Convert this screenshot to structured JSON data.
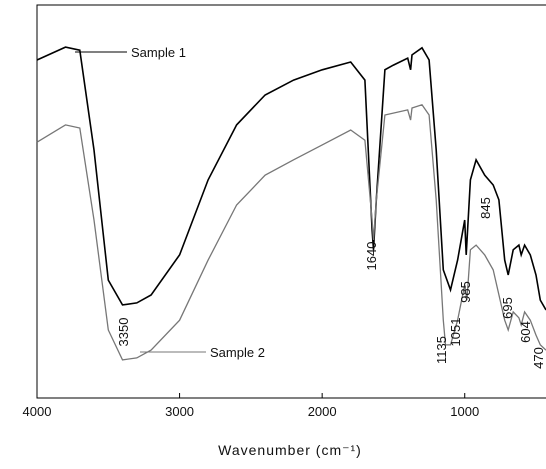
{
  "chart_data": {
    "type": "line",
    "x_label": "Wavenumber (cm⁻¹)",
    "xlim": [
      4000,
      430
    ],
    "ylim": [
      0,
      100
    ],
    "xticks": [
      4000,
      3000,
      2000,
      1000
    ],
    "series": [
      {
        "name": "Sample 1",
        "color": "#000000",
        "x": [
          4000,
          3800,
          3700,
          3600,
          3500,
          3400,
          3300,
          3200,
          3000,
          2800,
          2600,
          2400,
          2200,
          2000,
          1800,
          1700,
          1650,
          1640,
          1620,
          1560,
          1500,
          1400,
          1380,
          1370,
          1300,
          1250,
          1200,
          1150,
          1100,
          1050,
          1000,
          990,
          960,
          920,
          860,
          800,
          760,
          720,
          695,
          660,
          620,
          604,
          580,
          540,
          500,
          470,
          430
        ],
        "values": [
          86.0,
          89.3,
          88.5,
          63.1,
          30.0,
          23.7,
          24.2,
          26.2,
          36.4,
          55.5,
          69.5,
          77.1,
          80.9,
          83.5,
          85.5,
          80.9,
          42.7,
          37.7,
          50.4,
          83.5,
          84.7,
          86.5,
          83.5,
          87.3,
          89.1,
          86.0,
          63.1,
          32.6,
          27.5,
          35.1,
          45.3,
          36.4,
          55.5,
          60.6,
          56.7,
          54.2,
          50.4,
          35.1,
          31.3,
          37.7,
          38.9,
          36.4,
          38.9,
          36.4,
          31.3,
          24.9,
          22.4
        ]
      },
      {
        "name": "Sample 2",
        "color": "#777777",
        "x": [
          4000,
          3800,
          3700,
          3600,
          3500,
          3400,
          3300,
          3200,
          3000,
          2800,
          2600,
          2400,
          2200,
          2000,
          1800,
          1700,
          1650,
          1640,
          1620,
          1560,
          1400,
          1380,
          1370,
          1300,
          1250,
          1200,
          1150,
          1135,
          1100,
          1050,
          1000,
          985,
          960,
          920,
          860,
          800,
          720,
          695,
          660,
          620,
          604,
          580,
          540,
          500,
          470,
          430
        ],
        "values": [
          65.1,
          69.5,
          68.7,
          45.3,
          17.3,
          9.7,
          10.2,
          12.2,
          19.8,
          35.1,
          49.1,
          56.7,
          60.6,
          64.4,
          68.2,
          65.6,
          45.3,
          40.2,
          50.4,
          72.0,
          73.3,
          70.7,
          73.8,
          74.6,
          72.0,
          50.4,
          19.8,
          13.5,
          13.5,
          19.8,
          28.8,
          24.9,
          37.7,
          38.9,
          36.4,
          32.6,
          19.8,
          17.3,
          21.9,
          20.4,
          18.6,
          21.9,
          19.8,
          16.0,
          13.5,
          12.2
        ]
      }
    ],
    "annotations": [
      "3350",
      "1640",
      "1135",
      "1051",
      "985",
      "845",
      "695",
      "604",
      "470"
    ]
  }
}
